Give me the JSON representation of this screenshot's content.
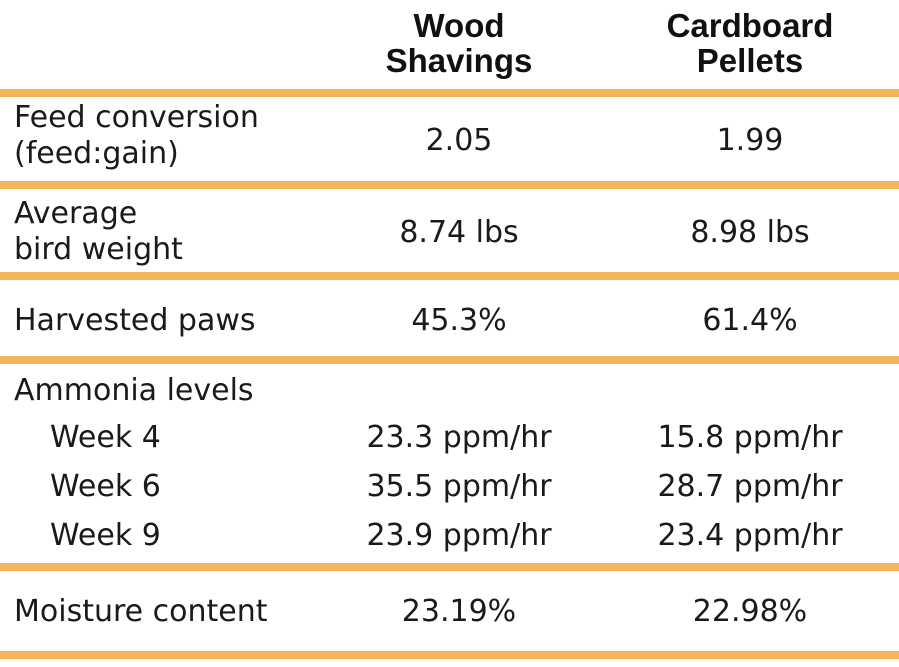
{
  "table": {
    "columns": [
      "Wood Shavings",
      "Cardboard Pellets"
    ],
    "header_lines": {
      "wood": [
        "Wood",
        "Shavings"
      ],
      "cardboard": [
        "Cardboard",
        "Pellets"
      ]
    },
    "rows": {
      "feed_conversion": {
        "label_lines": [
          "Feed conversion",
          "(feed:gain)"
        ],
        "wood": "2.05",
        "cardboard": "1.99"
      },
      "bird_weight": {
        "label_lines": [
          "Average",
          "bird weight"
        ],
        "wood": "8.74 lbs",
        "cardboard": "8.98 lbs"
      },
      "paws": {
        "label": "Harvested paws",
        "wood": "45.3%",
        "cardboard": "61.4%"
      },
      "ammonia": {
        "label": "Ammonia levels",
        "weeks": [
          {
            "label": "Week 4",
            "wood": "23.3 ppm/hr",
            "cardboard": "15.8 ppm/hr"
          },
          {
            "label": "Week 6",
            "wood": "35.5 ppm/hr",
            "cardboard": "28.7 ppm/hr"
          },
          {
            "label": "Week 9",
            "wood": "23.9 ppm/hr",
            "cardboard": "23.4 ppm/hr"
          }
        ]
      },
      "moisture": {
        "label": "Moisture content",
        "wood": "23.19%",
        "cardboard": "22.98%"
      }
    }
  },
  "colors": {
    "rule": "#f5b457",
    "text": "#1a1a1a"
  }
}
